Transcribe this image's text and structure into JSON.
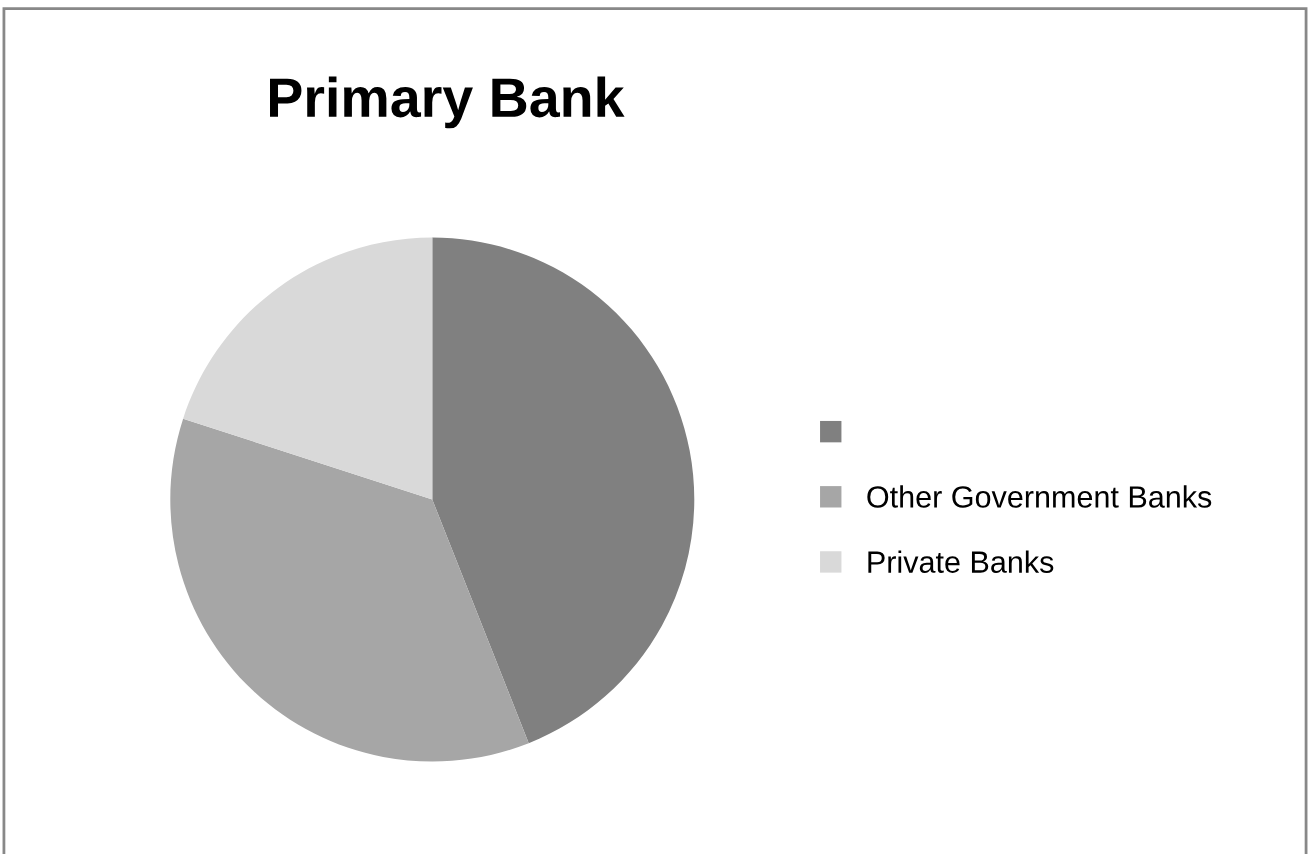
{
  "chart_data": {
    "type": "pie",
    "title": "Primary Bank",
    "categories": [
      null,
      "Other Government Banks",
      "Private Banks"
    ],
    "values": [
      44,
      36,
      20
    ],
    "colors": [
      "#808080",
      "#a6a6a6",
      "#d9d9d9"
    ],
    "legend": "right"
  }
}
